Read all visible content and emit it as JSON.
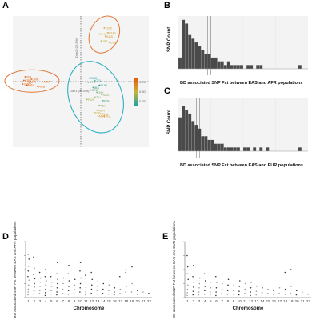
{
  "figure": {
    "panel_letters": [
      "A",
      "B",
      "C",
      "D",
      "E"
    ]
  },
  "chart_data": [
    {
      "id": "A",
      "type": "scatter",
      "title": "",
      "xlabel": "Dim1 (48.6%)",
      "ylabel": "Dim2 (22.5%)",
      "xlim": [
        -1.1,
        1.1
      ],
      "ylim": [
        -1.1,
        1.1
      ],
      "legend": {
        "placement": "right",
        "labels": [
          "0.75",
          "0.50",
          "0.25"
        ]
      },
      "colors": {
        "high": "#e8590c",
        "mid": "#c8b33a",
        "low": "#1fa3a3",
        "ellipse_orange": "#e07a3a",
        "ellipse_teal": "#2bb0c0"
      },
      "groups": [
        {
          "name": "top-right",
          "points": [
            {
              "label": "CDX",
              "x": 0.38,
              "y": 0.9,
              "v": 0.55
            },
            {
              "label": "KHV",
              "x": 0.3,
              "y": 0.8,
              "v": 0.5
            },
            {
              "label": "CHB",
              "x": 0.44,
              "y": 0.82,
              "v": 0.58
            },
            {
              "label": "EAS",
              "x": 0.4,
              "y": 0.76,
              "v": 0.62
            },
            {
              "label": "JPT",
              "x": 0.33,
              "y": 0.68,
              "v": 0.48
            },
            {
              "label": "CHS",
              "x": 0.46,
              "y": 0.66,
              "v": 0.6
            }
          ]
        },
        {
          "name": "left",
          "points": [
            {
              "label": "YRI",
              "x": -0.9,
              "y": 0.08,
              "v": 0.82
            },
            {
              "label": "ESN",
              "x": -0.92,
              "y": 0.02,
              "v": 0.8
            },
            {
              "label": "AFR",
              "x": -0.84,
              "y": -0.01,
              "v": 0.8
            },
            {
              "label": "GWD",
              "x": -0.94,
              "y": -0.04,
              "v": 0.78
            },
            {
              "label": "MSL",
              "x": -0.87,
              "y": -0.06,
              "v": 0.77
            },
            {
              "label": "LWK",
              "x": -0.8,
              "y": 0.04,
              "v": 0.76
            },
            {
              "label": "ASW",
              "x": -0.62,
              "y": 0.0,
              "v": 0.72
            },
            {
              "label": "ACB",
              "x": -0.7,
              "y": -0.08,
              "v": 0.74
            }
          ]
        },
        {
          "name": "bottom-right",
          "points": [
            {
              "label": "GBR",
              "x": 0.14,
              "y": 0.06,
              "v": 0.22
            },
            {
              "label": "CEU",
              "x": 0.22,
              "y": 0.02,
              "v": 0.24
            },
            {
              "label": "STU",
              "x": 0.12,
              "y": -0.01,
              "v": 0.3
            },
            {
              "label": "EUR",
              "x": 0.3,
              "y": -0.06,
              "v": 0.2
            },
            {
              "label": "IBS",
              "x": 0.2,
              "y": -0.1,
              "v": 0.28
            },
            {
              "label": "BEB",
              "x": 0.16,
              "y": -0.14,
              "v": 0.34
            },
            {
              "label": "GIH",
              "x": 0.26,
              "y": -0.18,
              "v": 0.36
            },
            {
              "label": "SAS",
              "x": 0.34,
              "y": -0.22,
              "v": 0.4
            },
            {
              "label": "ITU",
              "x": 0.22,
              "y": -0.26,
              "v": 0.38
            },
            {
              "label": "PUR",
              "x": 0.1,
              "y": -0.3,
              "v": 0.45
            },
            {
              "label": "FIN",
              "x": 0.36,
              "y": -0.32,
              "v": 0.3
            },
            {
              "label": "TSI",
              "x": 0.3,
              "y": -0.4,
              "v": 0.4
            },
            {
              "label": "AMR",
              "x": 0.26,
              "y": -0.48,
              "v": 0.52
            },
            {
              "label": "CLM",
              "x": 0.32,
              "y": -0.54,
              "v": 0.55
            },
            {
              "label": "PEL",
              "x": 0.38,
              "y": -0.58,
              "v": 0.6
            },
            {
              "label": "MXL",
              "x": 0.28,
              "y": -0.58,
              "v": 0.58
            },
            {
              "label": "PJL",
              "x": 0.22,
              "y": -0.52,
              "v": 0.5
            }
          ]
        }
      ]
    },
    {
      "id": "B",
      "type": "bar",
      "title": "",
      "xlabel": "BD associated SNP Fst between EAS and AFR populations",
      "ylabel": "SNP Count",
      "xlim": [
        0,
        0.8
      ],
      "ylim": [
        0,
        14
      ],
      "bin_width": 0.02,
      "values": [
        3,
        13,
        12,
        9,
        8,
        7,
        6,
        5,
        4,
        4,
        3,
        3,
        2,
        2,
        1,
        2,
        1,
        1,
        1,
        1,
        0,
        1,
        1,
        0,
        1,
        1,
        0,
        0,
        0,
        0,
        0,
        0,
        0,
        0,
        0,
        0,
        0,
        1,
        0,
        0
      ],
      "vlines": [
        0.17,
        0.18,
        0.2
      ]
    },
    {
      "id": "C",
      "type": "bar",
      "title": "",
      "xlabel": "BD associated SNP Fst between EAS and EUR populations",
      "ylabel": "SNP Count",
      "xlim": [
        0,
        0.8
      ],
      "ylim": [
        0,
        14
      ],
      "bin_width": 0.02,
      "values": [
        9,
        12,
        11,
        10,
        8,
        7,
        6,
        4,
        4,
        3,
        3,
        2,
        2,
        2,
        1,
        1,
        1,
        1,
        1,
        0,
        1,
        1,
        0,
        1,
        0,
        1,
        0,
        1,
        0,
        0,
        0,
        0,
        0,
        0,
        0,
        0,
        0,
        1,
        0,
        0
      ],
      "vlines": [
        0.11,
        0.12,
        0.13
      ]
    },
    {
      "id": "D",
      "type": "scatter",
      "title": "",
      "xlabel": "Chromosome",
      "ylabel": "BD associated SNP Fst between EAS and AFR populations",
      "categories": [
        "1",
        "2",
        "3",
        "4",
        "5",
        "6",
        "7",
        "8",
        "9",
        "10",
        "11",
        "12",
        "13",
        "14",
        "15",
        "16",
        "17",
        "18",
        "19",
        "20",
        "21",
        "22"
      ],
      "ylim": [
        0,
        0.8
      ],
      "y_ticks": [
        "0",
        "0.2",
        "0.4",
        "0.6",
        "0.8"
      ],
      "points": [
        [
          1,
          0.62
        ],
        [
          1,
          0.55
        ],
        [
          1,
          0.45
        ],
        [
          1,
          0.38
        ],
        [
          1,
          0.3
        ],
        [
          1,
          0.25
        ],
        [
          1,
          0.18
        ],
        [
          1,
          0.12
        ],
        [
          1,
          0.08
        ],
        [
          1,
          0.04
        ],
        [
          2,
          0.58
        ],
        [
          2,
          0.42
        ],
        [
          2,
          0.33
        ],
        [
          2,
          0.27
        ],
        [
          2,
          0.2
        ],
        [
          2,
          0.15
        ],
        [
          2,
          0.1
        ],
        [
          2,
          0.05
        ],
        [
          3,
          0.36
        ],
        [
          3,
          0.28
        ],
        [
          3,
          0.22
        ],
        [
          3,
          0.16
        ],
        [
          3,
          0.1
        ],
        [
          3,
          0.06
        ],
        [
          4,
          0.4
        ],
        [
          4,
          0.3
        ],
        [
          4,
          0.24
        ],
        [
          4,
          0.18
        ],
        [
          4,
          0.12
        ],
        [
          4,
          0.07
        ],
        [
          4,
          0.03
        ],
        [
          5,
          0.3
        ],
        [
          5,
          0.22
        ],
        [
          5,
          0.16
        ],
        [
          5,
          0.1
        ],
        [
          5,
          0.05
        ],
        [
          6,
          0.5
        ],
        [
          6,
          0.34
        ],
        [
          6,
          0.26
        ],
        [
          6,
          0.2
        ],
        [
          6,
          0.14
        ],
        [
          6,
          0.08
        ],
        [
          6,
          0.04
        ],
        [
          7,
          0.28
        ],
        [
          7,
          0.2
        ],
        [
          7,
          0.12
        ],
        [
          7,
          0.06
        ],
        [
          8,
          0.46
        ],
        [
          8,
          0.34
        ],
        [
          8,
          0.24
        ],
        [
          8,
          0.16
        ],
        [
          8,
          0.1
        ],
        [
          8,
          0.05
        ],
        [
          9,
          0.26
        ],
        [
          9,
          0.18
        ],
        [
          9,
          0.12
        ],
        [
          9,
          0.06
        ],
        [
          10,
          0.5
        ],
        [
          10,
          0.38
        ],
        [
          10,
          0.28
        ],
        [
          10,
          0.2
        ],
        [
          10,
          0.14
        ],
        [
          10,
          0.08
        ],
        [
          11,
          0.32
        ],
        [
          11,
          0.22
        ],
        [
          11,
          0.14
        ],
        [
          11,
          0.08
        ],
        [
          11,
          0.04
        ],
        [
          12,
          0.36
        ],
        [
          12,
          0.26
        ],
        [
          12,
          0.18
        ],
        [
          12,
          0.12
        ],
        [
          12,
          0.06
        ],
        [
          13,
          0.24
        ],
        [
          13,
          0.16
        ],
        [
          13,
          0.1
        ],
        [
          13,
          0.05
        ],
        [
          14,
          0.2
        ],
        [
          14,
          0.12
        ],
        [
          14,
          0.06
        ],
        [
          15,
          0.18
        ],
        [
          15,
          0.1
        ],
        [
          15,
          0.05
        ],
        [
          16,
          0.14
        ],
        [
          16,
          0.08
        ],
        [
          16,
          0.04
        ],
        [
          17,
          0.3
        ],
        [
          17,
          0.12
        ],
        [
          17,
          0.06
        ],
        [
          18,
          0.4
        ],
        [
          18,
          0.36
        ],
        [
          18,
          0.16
        ],
        [
          18,
          0.08
        ],
        [
          19,
          0.44
        ],
        [
          19,
          0.2
        ],
        [
          19,
          0.08
        ],
        [
          20,
          0.1
        ],
        [
          20,
          0.05
        ],
        [
          21,
          0.08
        ],
        [
          22,
          0.06
        ]
      ]
    },
    {
      "id": "E",
      "type": "scatter",
      "title": "",
      "xlabel": "Chromosome",
      "ylabel": "BD associated SNP Fst between EAS and EUR populations",
      "categories": [
        "1",
        "2",
        "3",
        "4",
        "5",
        "6",
        "7",
        "8",
        "9",
        "10",
        "11",
        "12",
        "13",
        "14",
        "15",
        "16",
        "17",
        "18",
        "19",
        "20",
        "21",
        "22"
      ],
      "ylim": [
        0,
        0.8
      ],
      "y_ticks": [
        "0",
        "0.2",
        "0.4",
        "0.6",
        "0.8"
      ],
      "points": [
        [
          1,
          0.6
        ],
        [
          1,
          0.44
        ],
        [
          1,
          0.34
        ],
        [
          1,
          0.26
        ],
        [
          1,
          0.18
        ],
        [
          1,
          0.12
        ],
        [
          1,
          0.07
        ],
        [
          1,
          0.03
        ],
        [
          2,
          0.46
        ],
        [
          2,
          0.3
        ],
        [
          2,
          0.22
        ],
        [
          2,
          0.15
        ],
        [
          2,
          0.09
        ],
        [
          2,
          0.04
        ],
        [
          3,
          0.28
        ],
        [
          3,
          0.2
        ],
        [
          3,
          0.14
        ],
        [
          3,
          0.08
        ],
        [
          3,
          0.04
        ],
        [
          4,
          0.34
        ],
        [
          4,
          0.24
        ],
        [
          4,
          0.16
        ],
        [
          4,
          0.1
        ],
        [
          4,
          0.05
        ],
        [
          5,
          0.22
        ],
        [
          5,
          0.14
        ],
        [
          5,
          0.08
        ],
        [
          5,
          0.04
        ],
        [
          6,
          0.3
        ],
        [
          6,
          0.22
        ],
        [
          6,
          0.14
        ],
        [
          6,
          0.08
        ],
        [
          6,
          0.03
        ],
        [
          7,
          0.2
        ],
        [
          7,
          0.12
        ],
        [
          7,
          0.06
        ],
        [
          8,
          0.26
        ],
        [
          8,
          0.18
        ],
        [
          8,
          0.1
        ],
        [
          8,
          0.05
        ],
        [
          9,
          0.18
        ],
        [
          9,
          0.1
        ],
        [
          9,
          0.05
        ],
        [
          10,
          0.24
        ],
        [
          10,
          0.16
        ],
        [
          10,
          0.09
        ],
        [
          10,
          0.04
        ],
        [
          11,
          0.2
        ],
        [
          11,
          0.12
        ],
        [
          11,
          0.06
        ],
        [
          12,
          0.22
        ],
        [
          12,
          0.14
        ],
        [
          12,
          0.08
        ],
        [
          12,
          0.03
        ],
        [
          13,
          0.16
        ],
        [
          13,
          0.09
        ],
        [
          13,
          0.04
        ],
        [
          14,
          0.14
        ],
        [
          14,
          0.07
        ],
        [
          15,
          0.12
        ],
        [
          15,
          0.06
        ],
        [
          16,
          0.1
        ],
        [
          16,
          0.05
        ],
        [
          17,
          0.14
        ],
        [
          17,
          0.06
        ],
        [
          18,
          0.36
        ],
        [
          18,
          0.12
        ],
        [
          18,
          0.05
        ],
        [
          19,
          0.4
        ],
        [
          19,
          0.16
        ],
        [
          19,
          0.06
        ],
        [
          20,
          0.1
        ],
        [
          20,
          0.04
        ],
        [
          21,
          0.08
        ],
        [
          22,
          0.05
        ]
      ]
    }
  ]
}
